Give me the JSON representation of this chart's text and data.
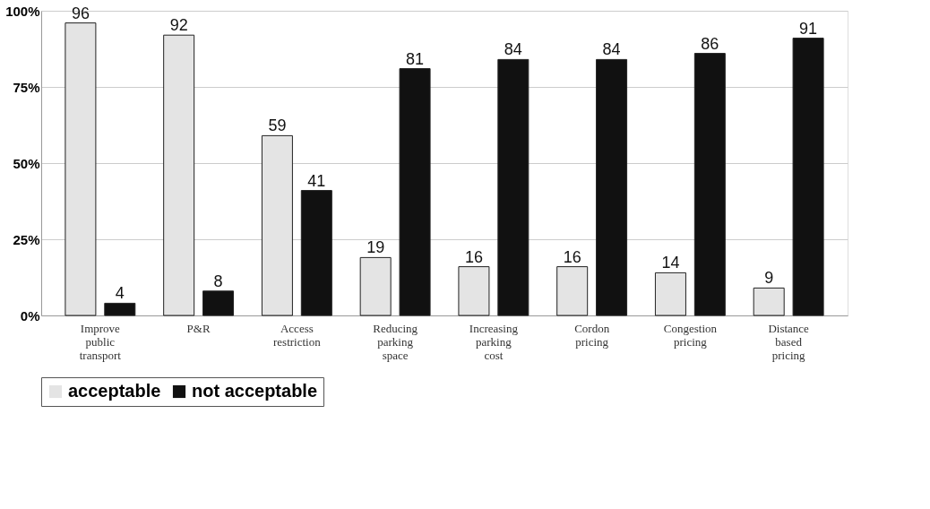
{
  "chart_data": {
    "type": "bar",
    "categories": [
      "Improve public transport",
      "P&R",
      "Access restriction",
      "Reducing parking space",
      "Increasing parking cost",
      "Cordon pricing",
      "Congestion pricing",
      "Distance based pricing"
    ],
    "series": [
      {
        "name": "acceptable",
        "color": "#e4e4e4",
        "values": [
          96,
          92,
          59,
          19,
          16,
          16,
          14,
          9
        ]
      },
      {
        "name": "not acceptable",
        "color": "#111111",
        "values": [
          4,
          8,
          41,
          81,
          84,
          84,
          86,
          91
        ]
      }
    ],
    "ylim": [
      0,
      100
    ],
    "yticks": [
      {
        "value": 0,
        "label": "0%"
      },
      {
        "value": 25,
        "label": "25%"
      },
      {
        "value": 50,
        "label": "50%"
      },
      {
        "value": 75,
        "label": "75%"
      },
      {
        "value": 100,
        "label": "100%"
      }
    ],
    "grid": "y",
    "legend": "bottom",
    "data_labels": true
  }
}
